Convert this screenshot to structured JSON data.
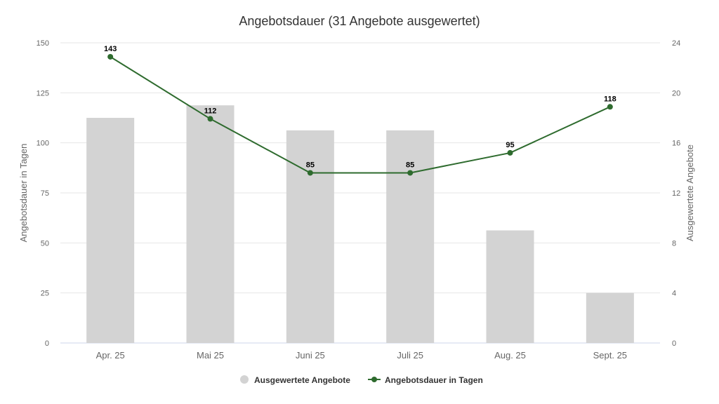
{
  "chart_data": {
    "type": "bar+line",
    "title": "Angebotsdauer (31 Angebote ausgewertet)",
    "categories": [
      "Apr. 25",
      "Mai 25",
      "Juni 25",
      "Juli 25",
      "Aug. 25",
      "Sept. 25"
    ],
    "series": [
      {
        "name": "Ausgewertete Angebote",
        "type": "bar",
        "axis": "right",
        "color": "#d3d3d3",
        "values": [
          18,
          19,
          17,
          17,
          9,
          4
        ]
      },
      {
        "name": "Angebotsdauer in Tagen",
        "type": "line",
        "axis": "left",
        "color": "#2e6b2e",
        "values": [
          143,
          112,
          85,
          85,
          95,
          118
        ],
        "data_labels": [
          "143",
          "112",
          "85",
          "85",
          "95",
          "118"
        ]
      }
    ],
    "ylabel": "Angebotsdauer in Tagen",
    "ylim": [
      0,
      150
    ],
    "yticks": [
      "0",
      "25",
      "50",
      "75",
      "100",
      "125",
      "150"
    ],
    "y2label": "Ausgewertete Angebote",
    "y2lim": [
      0,
      24
    ],
    "y2ticks": [
      "0",
      "4",
      "8",
      "12",
      "16",
      "20",
      "24"
    ],
    "grid": true,
    "legend_position": "bottom"
  }
}
